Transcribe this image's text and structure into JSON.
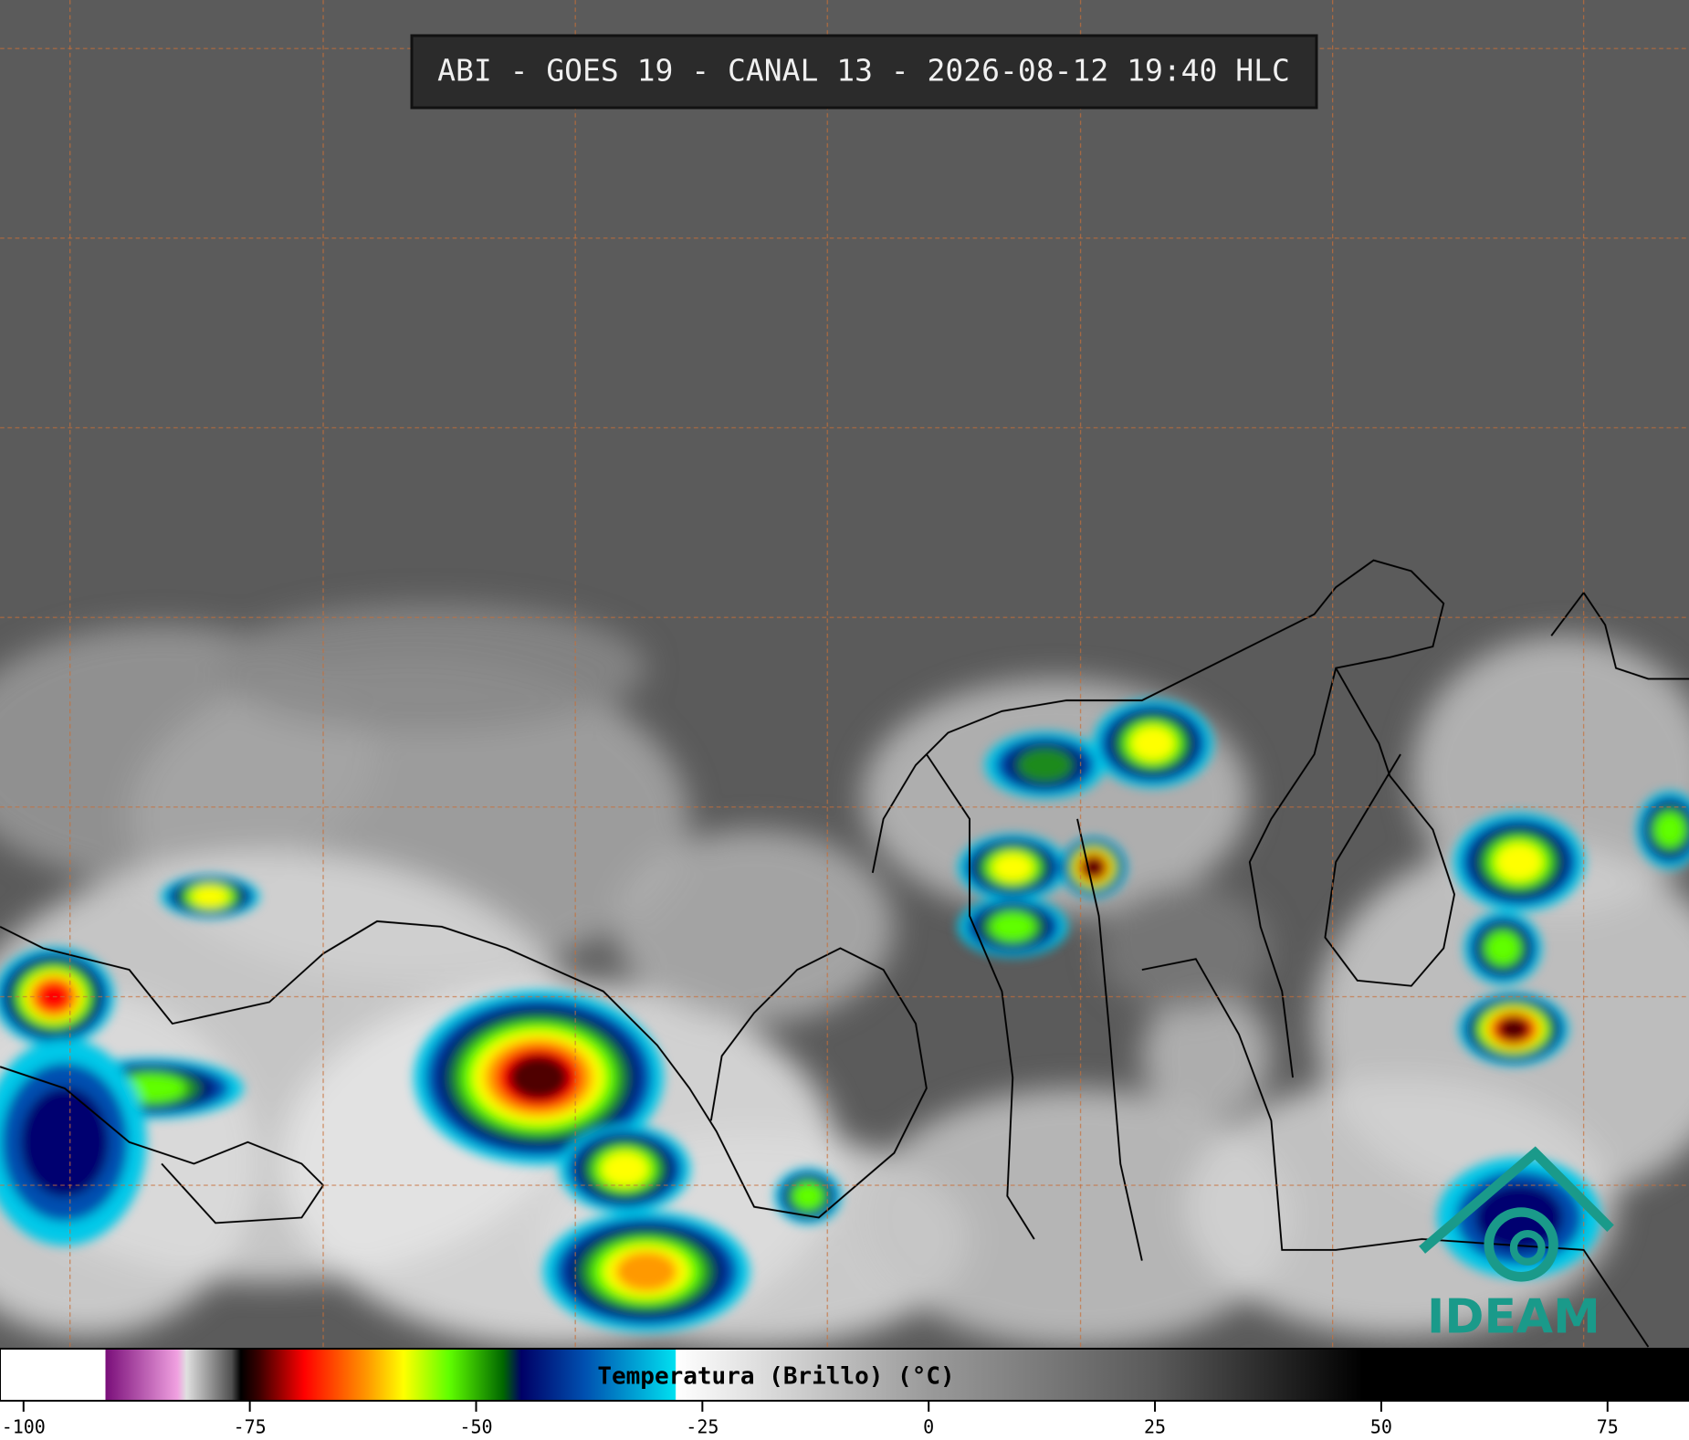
{
  "header": {
    "title": "ABI - GOES 19 - CANAL 13 - 2026-08-12 19:40 HLC"
  },
  "colorbar": {
    "label": "Temperatura (Brillo) (°C)",
    "xlim": [
      -102.6,
      84
    ],
    "xticks": [
      -100,
      -75,
      -50,
      -25,
      0,
      25,
      50,
      75
    ],
    "colormap": [
      {
        "value": -102.6,
        "color": "#ffffff"
      },
      {
        "value": -91,
        "color": "#ffffff"
      },
      {
        "value": -90.9,
        "color": "#7a0f7a"
      },
      {
        "value": -83,
        "color": "#f0a0e0"
      },
      {
        "value": -82,
        "color": "#e0e0e0"
      },
      {
        "value": -77,
        "color": "#505050"
      },
      {
        "value": -76,
        "color": "#000000"
      },
      {
        "value": -74,
        "color": "#3a0000"
      },
      {
        "value": -69,
        "color": "#ff0000"
      },
      {
        "value": -62,
        "color": "#ff9900"
      },
      {
        "value": -58,
        "color": "#ffff00"
      },
      {
        "value": -53,
        "color": "#60ff00"
      },
      {
        "value": -47,
        "color": "#006600"
      },
      {
        "value": -45,
        "color": "#000066"
      },
      {
        "value": -38,
        "color": "#0050b0"
      },
      {
        "value": -28,
        "color": "#00e0f0"
      },
      {
        "value": -27.9,
        "color": "#ffffff"
      },
      {
        "value": 0,
        "color": "#9a9a9a"
      },
      {
        "value": 25,
        "color": "#5a5a5a"
      },
      {
        "value": 48,
        "color": "#000000"
      },
      {
        "value": 84,
        "color": "#000000"
      }
    ]
  },
  "logo": {
    "text": "IDEAM"
  }
}
